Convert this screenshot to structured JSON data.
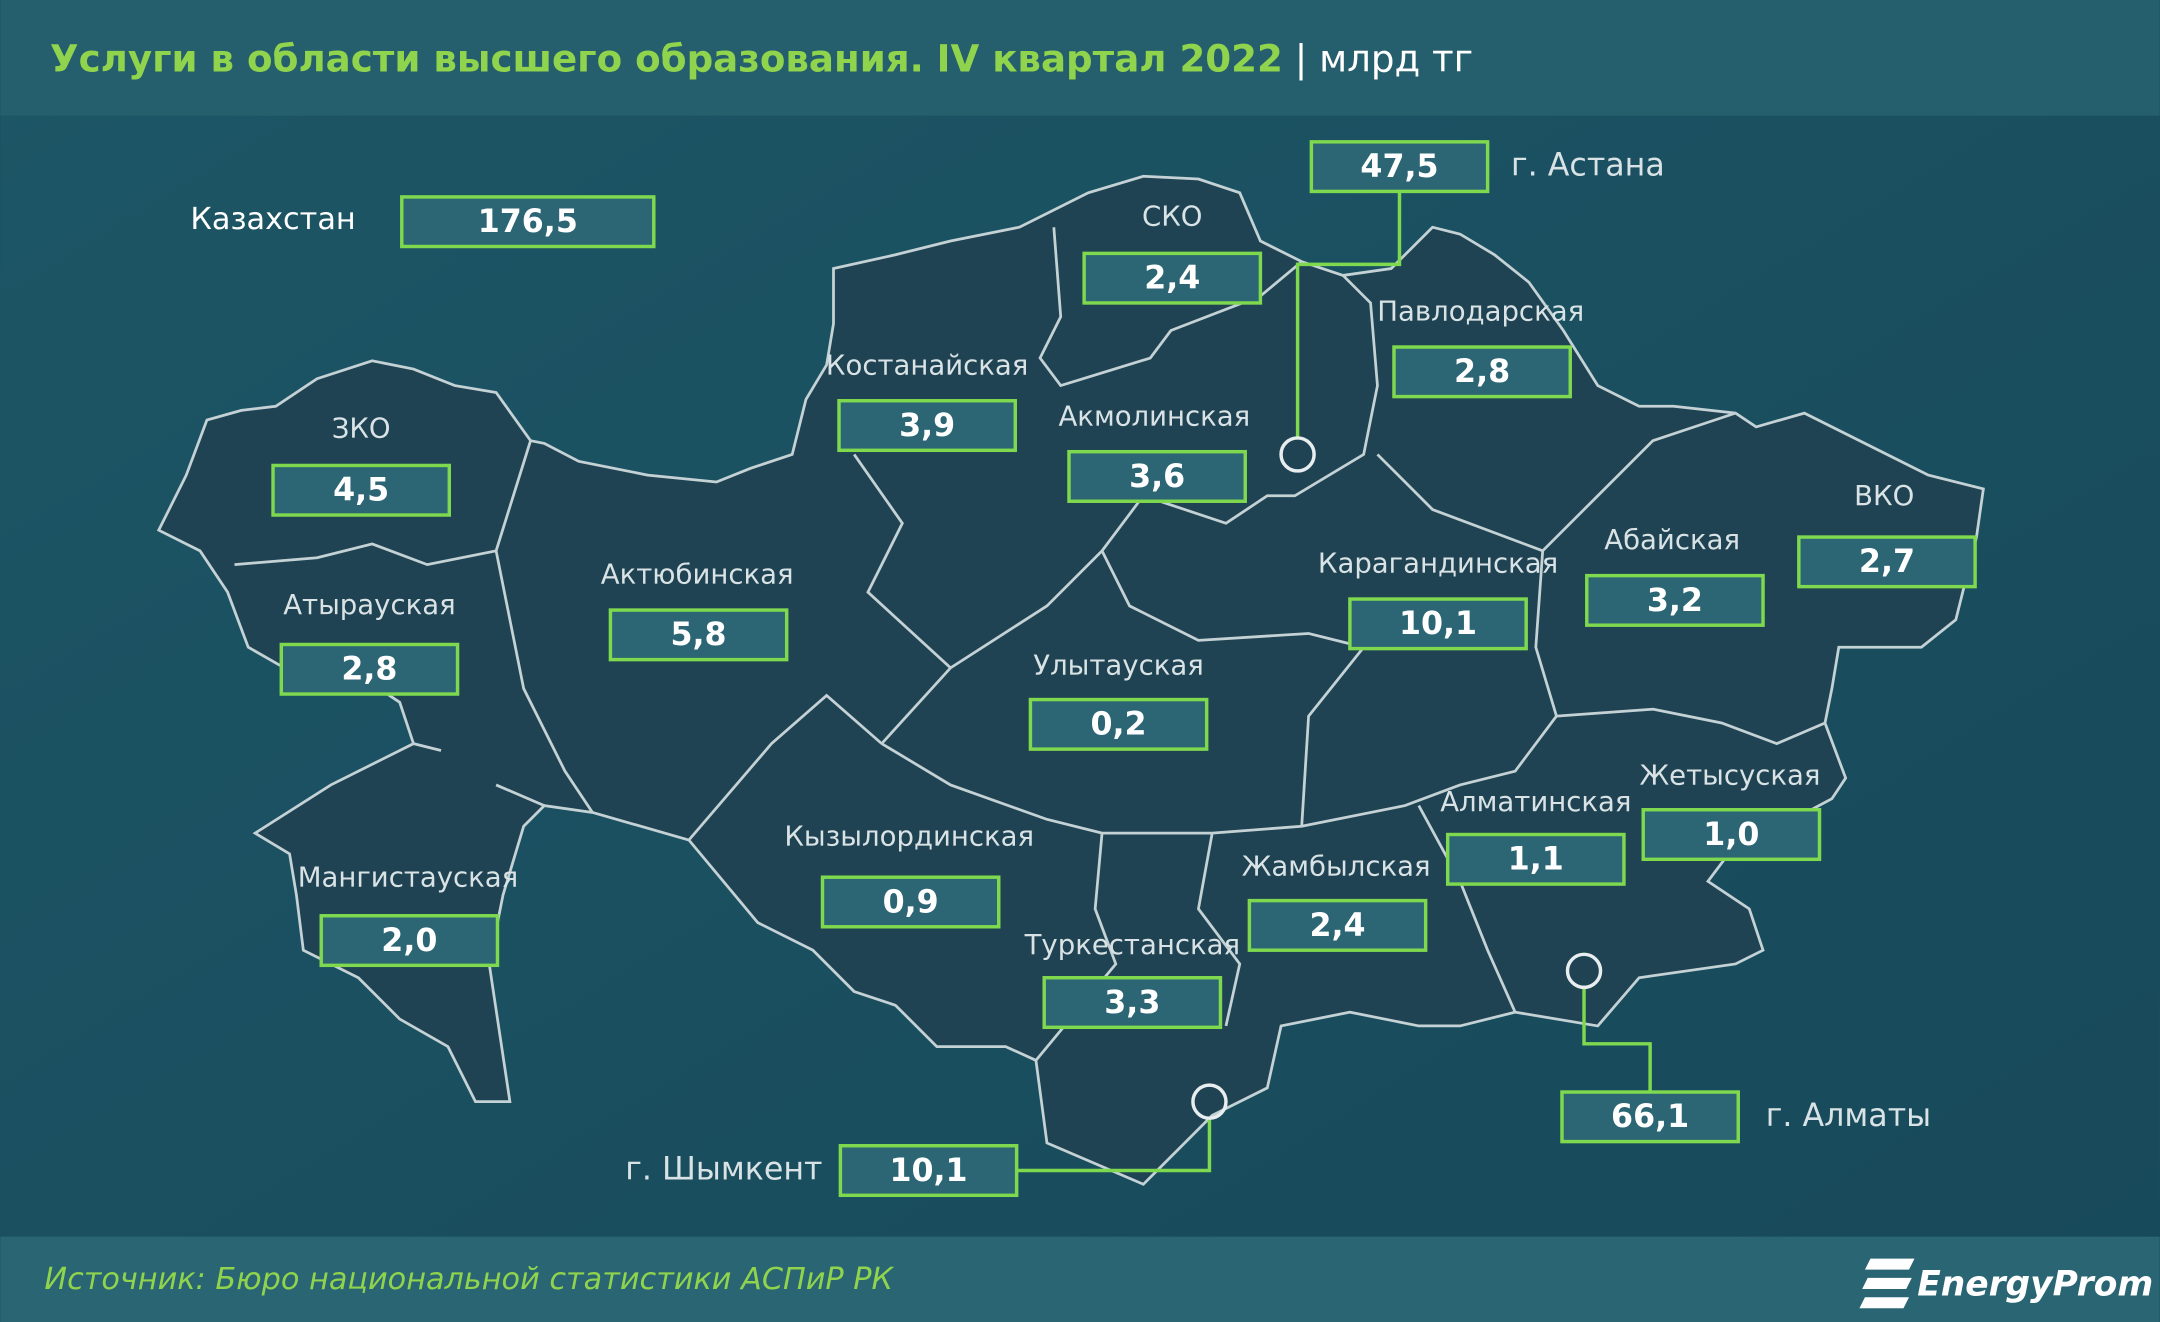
{
  "header": {
    "title": "Услуги в области высшего образования. IV квартал 2022",
    "unit": "млрд тг"
  },
  "total": {
    "label": "Казахстан",
    "value": "176,5"
  },
  "regions": [
    {
      "label": "СКО",
      "value": "2,4"
    },
    {
      "label": "Костанайская",
      "value": "3,9"
    },
    {
      "label": "Акмолинская",
      "value": "3,6"
    },
    {
      "label": "Павлодарская",
      "value": "2,8"
    },
    {
      "label": "ЗКО",
      "value": "4,5"
    },
    {
      "label": "Актюбинская",
      "value": "5,8"
    },
    {
      "label": "Атырауская",
      "value": "2,8"
    },
    {
      "label": "Карагандинская",
      "value": "10,1"
    },
    {
      "label": "Абайская",
      "value": "3,2"
    },
    {
      "label": "ВКО",
      "value": "2,7"
    },
    {
      "label": "Улытауская",
      "value": "0,2"
    },
    {
      "label": "Кызылординская",
      "value": "0,9"
    },
    {
      "label": "Мангистауская",
      "value": "2,0"
    },
    {
      "label": "Жамбылская",
      "value": "2,4"
    },
    {
      "label": "Алматинская",
      "value": "1,1"
    },
    {
      "label": "Жетысуская",
      "value": "1,0"
    },
    {
      "label": "Туркестанская",
      "value": "3,3"
    }
  ],
  "cities": [
    {
      "label": "г. Астана",
      "value": "47,5"
    },
    {
      "label": "г. Шымкент",
      "value": "10,1"
    },
    {
      "label": "г. Алматы",
      "value": "66,1"
    }
  ],
  "footer": {
    "source": "Источник: Бюро национальной статистики АСПиР РК",
    "brand": "EnergyProm"
  }
}
